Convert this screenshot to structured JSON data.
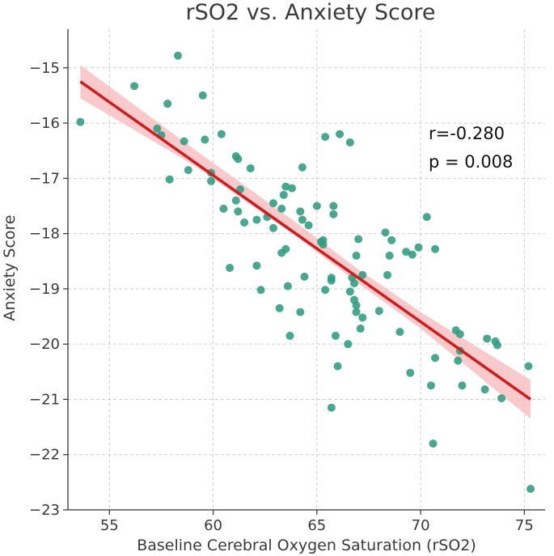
{
  "chart_data": {
    "type": "scatter",
    "title": "rSO2 vs. Anxiety Score",
    "xlabel": "Baseline Cerebral Oxygen Saturation (rSO2)",
    "ylabel": "Anxiety Score",
    "xlim": [
      53.0,
      76.0
    ],
    "ylim": [
      -23.0,
      -14.3
    ],
    "xticks": [
      55,
      60,
      65,
      70,
      75
    ],
    "yticks": [
      -15,
      -16,
      -17,
      -18,
      -19,
      -20,
      -21,
      -22,
      -23
    ],
    "xtick_labels": [
      "55",
      "60",
      "65",
      "70",
      "75"
    ],
    "ytick_labels": [
      "−15",
      "−16",
      "−17",
      "−18",
      "−19",
      "−20",
      "−21",
      "−22",
      "−23"
    ],
    "grid": true,
    "annotations": {
      "r": "r=-0.280",
      "p": "p = 0.008"
    },
    "colors": {
      "points": "#2e9c7f",
      "fit_line": "#d01c1c",
      "confidence_band": "#f7b8bb"
    },
    "fit_line": {
      "x": [
        53.6,
        75.3
      ],
      "y": [
        -15.25,
        -21.0
      ]
    },
    "confidence_band": {
      "x": [
        53.6,
        59.0,
        64.0,
        67.0,
        70.0,
        75.3
      ],
      "lower": [
        -15.55,
        -16.75,
        -18.05,
        -18.9,
        -19.72,
        -21.35
      ],
      "upper": [
        -14.95,
        -16.45,
        -17.8,
        -18.65,
        -19.42,
        -20.65
      ]
    },
    "points": [
      {
        "x": 53.6,
        "y": -15.98
      },
      {
        "x": 56.2,
        "y": -15.33
      },
      {
        "x": 57.3,
        "y": -16.1
      },
      {
        "x": 57.5,
        "y": -16.22
      },
      {
        "x": 57.8,
        "y": -15.65
      },
      {
        "x": 57.9,
        "y": -17.02
      },
      {
        "x": 58.3,
        "y": -14.78
      },
      {
        "x": 58.6,
        "y": -16.33
      },
      {
        "x": 58.8,
        "y": -16.85
      },
      {
        "x": 59.5,
        "y": -15.5
      },
      {
        "x": 59.6,
        "y": -16.3
      },
      {
        "x": 59.9,
        "y": -17.05
      },
      {
        "x": 59.9,
        "y": -16.9
      },
      {
        "x": 60.4,
        "y": -16.2
      },
      {
        "x": 60.5,
        "y": -17.55
      },
      {
        "x": 60.8,
        "y": -18.62
      },
      {
        "x": 61.1,
        "y": -16.6
      },
      {
        "x": 61.1,
        "y": -17.4
      },
      {
        "x": 61.2,
        "y": -16.65
      },
      {
        "x": 61.2,
        "y": -17.6
      },
      {
        "x": 61.3,
        "y": -17.2
      },
      {
        "x": 61.5,
        "y": -17.8
      },
      {
        "x": 61.8,
        "y": -16.82
      },
      {
        "x": 62.1,
        "y": -17.75
      },
      {
        "x": 62.1,
        "y": -18.58
      },
      {
        "x": 62.3,
        "y": -19.02
      },
      {
        "x": 62.6,
        "y": -17.7
      },
      {
        "x": 62.9,
        "y": -17.45
      },
      {
        "x": 62.9,
        "y": -17.9
      },
      {
        "x": 63.2,
        "y": -19.35
      },
      {
        "x": 63.3,
        "y": -17.55
      },
      {
        "x": 63.3,
        "y": -18.35
      },
      {
        "x": 63.4,
        "y": -17.3
      },
      {
        "x": 63.5,
        "y": -17.15
      },
      {
        "x": 63.5,
        "y": -18.28
      },
      {
        "x": 63.6,
        "y": -18.95
      },
      {
        "x": 63.7,
        "y": -19.85
      },
      {
        "x": 63.8,
        "y": -17.18
      },
      {
        "x": 64.2,
        "y": -19.42
      },
      {
        "x": 64.2,
        "y": -17.6
      },
      {
        "x": 64.3,
        "y": -17.75
      },
      {
        "x": 64.3,
        "y": -16.8
      },
      {
        "x": 64.4,
        "y": -18.78
      },
      {
        "x": 64.6,
        "y": -17.85
      },
      {
        "x": 65.0,
        "y": -17.5
      },
      {
        "x": 65.2,
        "y": -18.15
      },
      {
        "x": 65.3,
        "y": -18.2
      },
      {
        "x": 65.3,
        "y": -18.12
      },
      {
        "x": 65.4,
        "y": -16.25
      },
      {
        "x": 65.4,
        "y": -19.02
      },
      {
        "x": 65.7,
        "y": -21.15
      },
      {
        "x": 65.7,
        "y": -18.85
      },
      {
        "x": 65.7,
        "y": -18.8
      },
      {
        "x": 65.8,
        "y": -17.5
      },
      {
        "x": 65.8,
        "y": -17.65
      },
      {
        "x": 65.9,
        "y": -19.85
      },
      {
        "x": 66.0,
        "y": -20.4
      },
      {
        "x": 66.1,
        "y": -16.2
      },
      {
        "x": 66.5,
        "y": -20.0
      },
      {
        "x": 66.6,
        "y": -16.35
      },
      {
        "x": 66.6,
        "y": -19.05
      },
      {
        "x": 66.7,
        "y": -18.8
      },
      {
        "x": 66.8,
        "y": -19.2
      },
      {
        "x": 66.8,
        "y": -18.9
      },
      {
        "x": 66.9,
        "y": -19.3
      },
      {
        "x": 66.9,
        "y": -19.42
      },
      {
        "x": 66.9,
        "y": -18.4
      },
      {
        "x": 67.0,
        "y": -18.1
      },
      {
        "x": 67.1,
        "y": -19.72
      },
      {
        "x": 67.2,
        "y": -19.52
      },
      {
        "x": 67.2,
        "y": -18.75
      },
      {
        "x": 68.0,
        "y": -19.4
      },
      {
        "x": 68.3,
        "y": -17.98
      },
      {
        "x": 68.4,
        "y": -18.75
      },
      {
        "x": 68.5,
        "y": -18.4
      },
      {
        "x": 68.6,
        "y": -18.12
      },
      {
        "x": 69.0,
        "y": -19.78
      },
      {
        "x": 69.3,
        "y": -18.33
      },
      {
        "x": 69.5,
        "y": -20.52
      },
      {
        "x": 69.6,
        "y": -18.38
      },
      {
        "x": 69.9,
        "y": -18.25
      },
      {
        "x": 70.3,
        "y": -17.7
      },
      {
        "x": 70.5,
        "y": -20.75
      },
      {
        "x": 70.6,
        "y": -21.8
      },
      {
        "x": 70.7,
        "y": -20.25
      },
      {
        "x": 70.7,
        "y": -18.28
      },
      {
        "x": 71.7,
        "y": -19.75
      },
      {
        "x": 71.8,
        "y": -20.3
      },
      {
        "x": 71.9,
        "y": -19.82
      },
      {
        "x": 71.9,
        "y": -20.12
      },
      {
        "x": 72.0,
        "y": -20.75
      },
      {
        "x": 73.1,
        "y": -20.82
      },
      {
        "x": 73.2,
        "y": -19.9
      },
      {
        "x": 73.6,
        "y": -19.95
      },
      {
        "x": 73.7,
        "y": -20.02
      },
      {
        "x": 73.9,
        "y": -20.98
      },
      {
        "x": 75.2,
        "y": -20.4
      },
      {
        "x": 75.3,
        "y": -22.62
      }
    ]
  }
}
